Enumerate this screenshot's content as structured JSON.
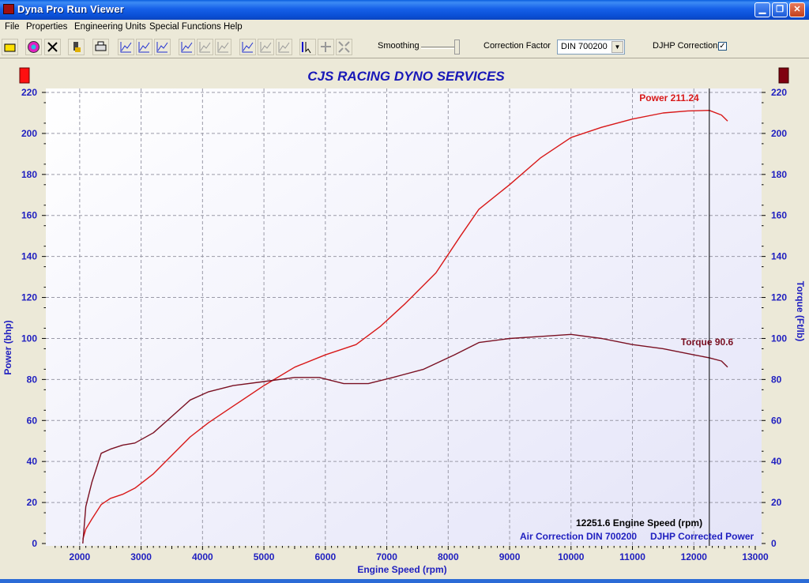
{
  "window": {
    "title": "Dyna Pro Run Viewer"
  },
  "menu": [
    "File",
    "Properties",
    "Engineering Units",
    "Special Functions",
    "Help"
  ],
  "toolbar": {
    "buttons": [
      "open-icon",
      "color-icon",
      "close-icon",
      "load-icon",
      "print-icon",
      "graph-icon",
      "graph-icon",
      "graph-icon",
      "graph-icon",
      "graph-icon",
      "graph-icon",
      "graph-icon",
      "graph-icon",
      "graph-icon",
      "cursor-icon",
      "grid-icon",
      "zoom-icon"
    ],
    "smoothing_label": "Smoothing",
    "correction_label": "Correction Factor",
    "correction_value": "DIN 700200",
    "djhp_label": "DJHP Correction",
    "djhp_checked": true
  },
  "chart_data": {
    "type": "line",
    "title": "CJS RACING DYNO SERVICES",
    "xlabel": "Engine Speed (rpm)",
    "ylabel": "Power (bhp)",
    "y2label": "Torque (Ft/lb)",
    "xlim": [
      1500,
      13000
    ],
    "ylim": [
      0,
      220
    ],
    "xticks": [
      2000,
      3000,
      4000,
      5000,
      6000,
      7000,
      8000,
      9000,
      10000,
      11000,
      12000,
      13000
    ],
    "yticks": [
      0,
      20,
      40,
      60,
      80,
      100,
      120,
      140,
      160,
      180,
      200,
      220
    ],
    "grid": true,
    "series": [
      {
        "name": "Power",
        "color": "#d81818",
        "x": [
          2050,
          2100,
          2200,
          2350,
          2500,
          2700,
          2900,
          3200,
          3500,
          3800,
          4100,
          4500,
          5000,
          5500,
          6000,
          6500,
          6900,
          7300,
          7800,
          8200,
          8500,
          9000,
          9500,
          10000,
          10500,
          11000,
          11500,
          11900,
          12250,
          12450,
          12550
        ],
        "y": [
          2,
          7,
          12,
          19,
          22,
          24,
          27,
          34,
          43,
          52,
          59,
          67,
          77,
          86,
          92,
          97,
          106,
          117,
          132,
          150,
          163,
          175,
          188,
          198,
          203,
          207,
          210,
          211,
          211.24,
          209,
          206
        ]
      },
      {
        "name": "Torque",
        "color": "#7a1022",
        "x": [
          2050,
          2100,
          2200,
          2350,
          2500,
          2700,
          2900,
          3200,
          3500,
          3800,
          4100,
          4500,
          5000,
          5500,
          5900,
          6300,
          6700,
          7100,
          7600,
          8100,
          8500,
          9000,
          9500,
          10000,
          10500,
          11000,
          11500,
          12000,
          12250,
          12450,
          12550
        ],
        "y": [
          0,
          18,
          30,
          44,
          46,
          48,
          49,
          54,
          62,
          70,
          74,
          77,
          79,
          81,
          81,
          78,
          78,
          81,
          85,
          92,
          98,
          100,
          101,
          102,
          100,
          97,
          95,
          92,
          90.6,
          89,
          86
        ]
      }
    ],
    "legend": {
      "left_color": "#ff1010",
      "right_color": "#800010"
    },
    "annotations": {
      "power": "Power 211.24",
      "torque": "Torque 90.6",
      "cursor_rpm": 12251.6,
      "cursor_value": "12251.6",
      "cursor_label": "Engine Speed (rpm)",
      "air_correction": "Air Correction DIN 700200",
      "corrected": "DJHP Corrected Power"
    }
  }
}
